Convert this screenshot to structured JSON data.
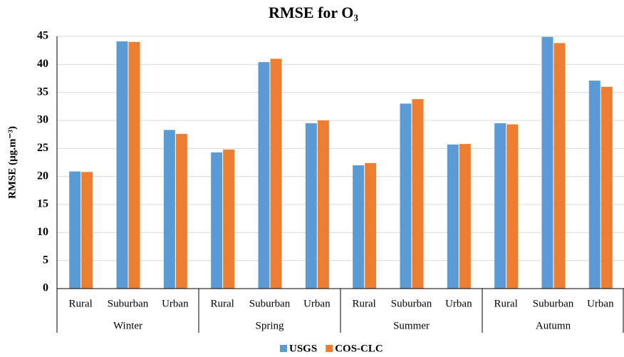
{
  "chart_data": {
    "type": "bar",
    "title": "RMSE for O₃",
    "y_label": "RMSE (µg.m⁻³)",
    "categories": [
      "Rural",
      "Suburban",
      "Urban",
      "Rural",
      "Suburban",
      "Urban",
      "Rural",
      "Suburban",
      "Urban",
      "Rural",
      "Suburban",
      "Urban"
    ],
    "groups": [
      "Winter",
      "Spring",
      "Summer",
      "Autumn"
    ],
    "series": [
      {
        "name": "USGS",
        "color": "#5b9bd5",
        "values": [
          20.9,
          44.1,
          28.3,
          24.3,
          40.4,
          29.5,
          22.0,
          33.0,
          25.7,
          29.5,
          44.9,
          37.1
        ]
      },
      {
        "name": "COS-CLC",
        "color": "#ed7d31",
        "values": [
          20.8,
          44.0,
          27.6,
          24.8,
          41.0,
          30.0,
          22.4,
          33.8,
          25.8,
          29.3,
          43.8,
          36.0
        ]
      }
    ],
    "ylim": [
      0,
      45
    ],
    "yticks": [
      0,
      5,
      10,
      15,
      20,
      25,
      30,
      35,
      40,
      45
    ],
    "grid": true,
    "legend": "bottom"
  }
}
